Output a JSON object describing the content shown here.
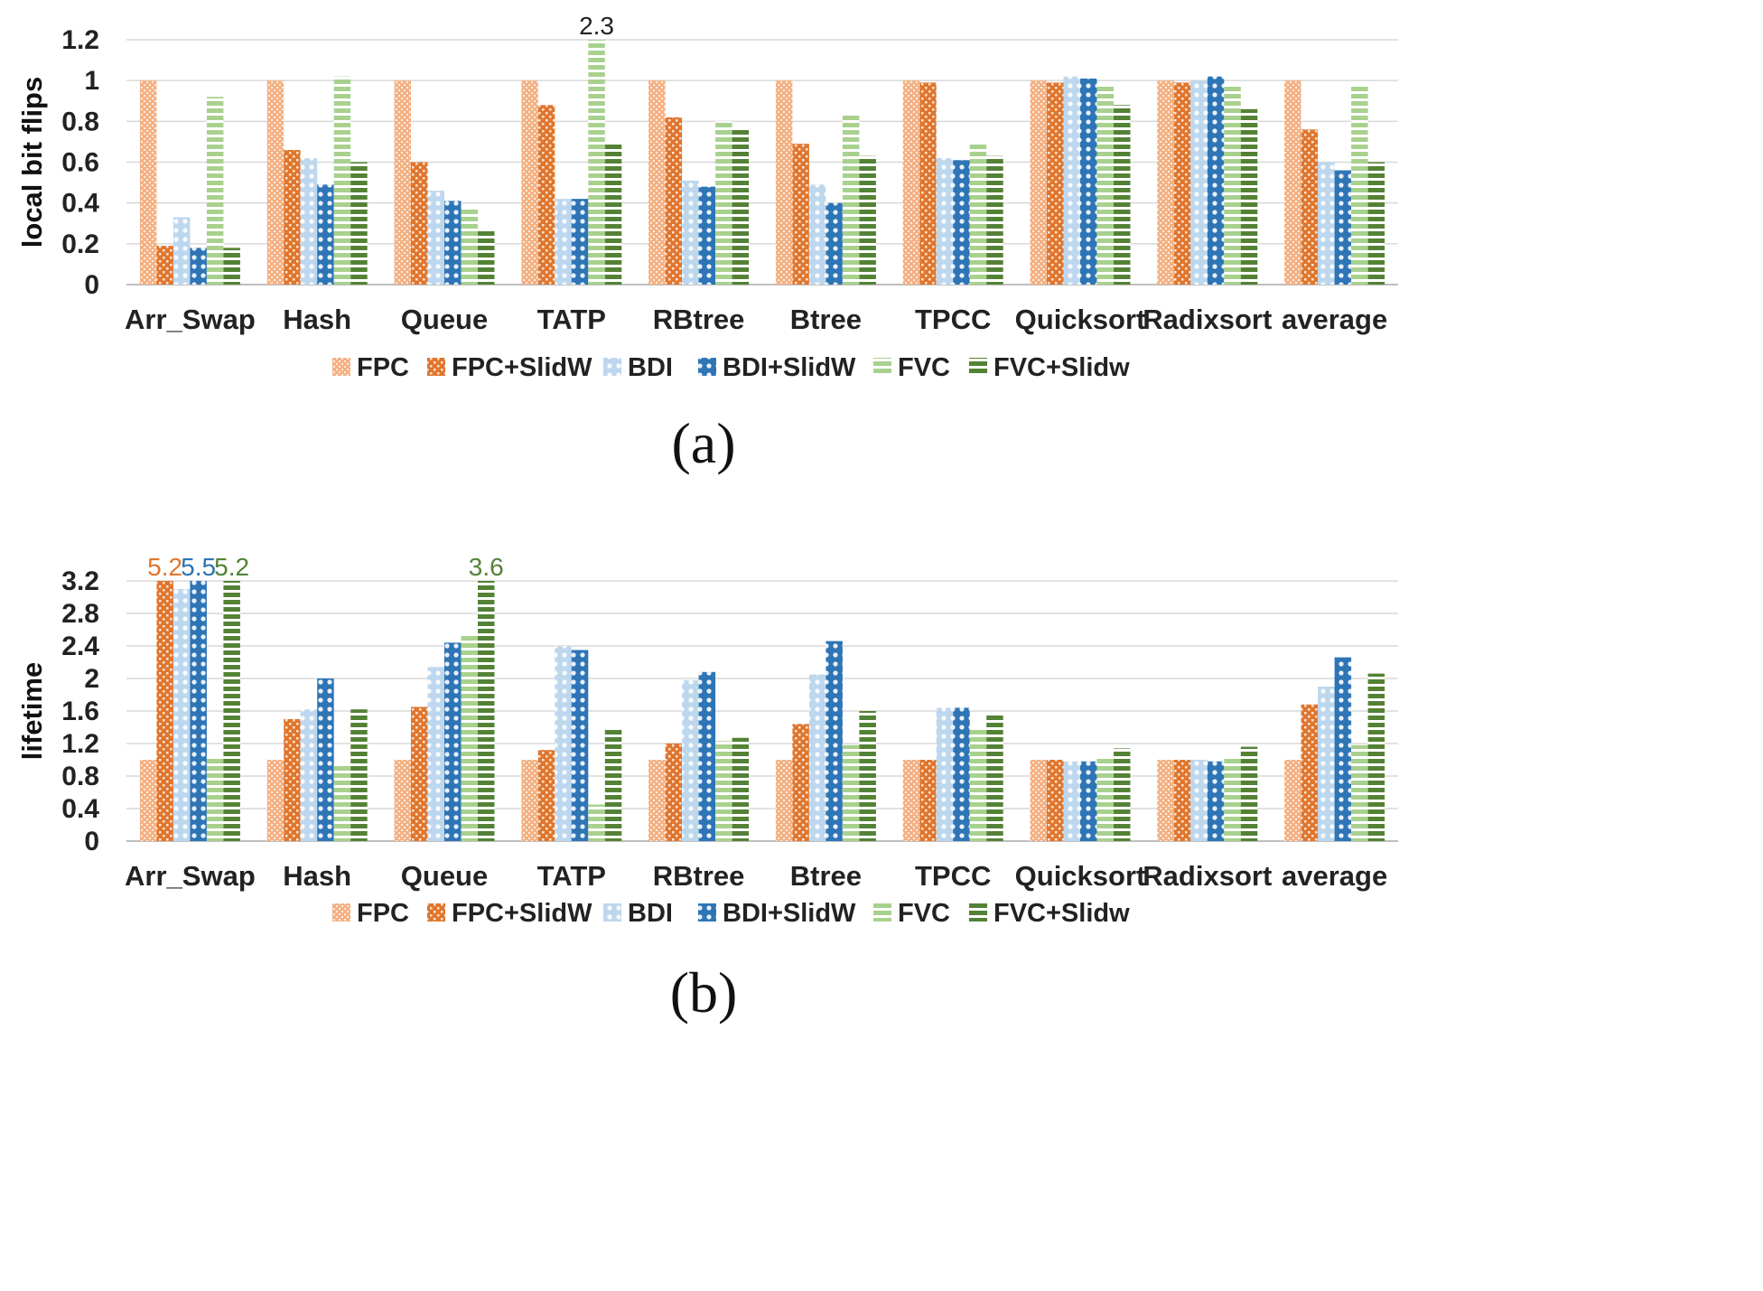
{
  "chart_data": [
    {
      "type": "bar",
      "caption": "(a)",
      "ylabel": "local bit flips",
      "ylim": [
        0,
        1.2
      ],
      "yticks": [
        "0",
        "0.2",
        "0.4",
        "0.6",
        "0.8",
        "1",
        "1.2"
      ],
      "grid": true,
      "legend": "bottom",
      "categories": [
        "Arr_Swap",
        "Hash",
        "Queue",
        "TATP",
        "RBtree",
        "Btree",
        "TPCC",
        "Quicksort",
        "Radixsort",
        "average"
      ],
      "series": [
        {
          "name": "FPC",
          "color": "#f4b183",
          "pattern": "dots",
          "values": [
            1,
            1,
            1,
            1,
            1,
            1,
            1,
            1,
            1,
            1
          ]
        },
        {
          "name": "FPC+SlidW",
          "color": "#e0762e",
          "pattern": "checker",
          "values": [
            0.19,
            0.66,
            0.6,
            0.88,
            0.82,
            0.69,
            0.99,
            0.99,
            0.99,
            0.76
          ]
        },
        {
          "name": "BDI",
          "color": "#bdd7ee",
          "pattern": "rings",
          "values": [
            0.33,
            0.62,
            0.46,
            0.42,
            0.51,
            0.49,
            0.62,
            1.02,
            1,
            0.6
          ]
        },
        {
          "name": "BDI+SlidW",
          "color": "#2e75b6",
          "pattern": "rings",
          "values": [
            0.18,
            0.49,
            0.41,
            0.42,
            0.48,
            0.4,
            0.61,
            1.01,
            1.02,
            0.56
          ]
        },
        {
          "name": "FVC",
          "color": "#a9d18e",
          "pattern": "hstripes",
          "values": [
            0.92,
            1.02,
            0.37,
            1.2,
            0.8,
            0.83,
            0.69,
            0.97,
            0.97,
            0.97
          ]
        },
        {
          "name": "FVC+Slidw",
          "color": "#548235",
          "pattern": "hstripes",
          "values": [
            0.18,
            0.6,
            0.27,
            0.69,
            0.77,
            0.63,
            0.63,
            0.88,
            0.86,
            0.6
          ]
        }
      ],
      "annotations": [
        {
          "category": "TATP",
          "series": "FVC",
          "text": "2.3",
          "color": "#222222"
        }
      ]
    },
    {
      "type": "bar",
      "caption": "(b)",
      "ylabel": "lifetime",
      "ylim": [
        0,
        3.2
      ],
      "yticks": [
        "0",
        "0.4",
        "0.8",
        "1.2",
        "1.6",
        "2",
        "2.4",
        "2.8",
        "3.2"
      ],
      "grid": true,
      "legend": "bottom",
      "categories": [
        "Arr_Swap",
        "Hash",
        "Queue",
        "TATP",
        "RBtree",
        "Btree",
        "TPCC",
        "Quicksort",
        "Radixsort",
        "average"
      ],
      "series": [
        {
          "name": "FPC",
          "color": "#f4b183",
          "pattern": "dots",
          "values": [
            1,
            1,
            1,
            1,
            1,
            1,
            1,
            1,
            1,
            1
          ]
        },
        {
          "name": "FPC+SlidW",
          "color": "#e0762e",
          "pattern": "checker",
          "values": [
            3.2,
            1.5,
            1.65,
            1.12,
            1.2,
            1.44,
            1,
            1,
            1,
            1.68
          ]
        },
        {
          "name": "BDI",
          "color": "#bdd7ee",
          "pattern": "rings",
          "values": [
            3.1,
            1.62,
            2.14,
            2.4,
            1.98,
            2.05,
            1.64,
            0.98,
            1,
            1.9
          ]
        },
        {
          "name": "BDI+SlidW",
          "color": "#2e75b6",
          "pattern": "rings",
          "values": [
            3.2,
            2.0,
            2.44,
            2.35,
            2.08,
            2.46,
            1.64,
            0.98,
            0.98,
            2.26
          ]
        },
        {
          "name": "FVC",
          "color": "#a9d18e",
          "pattern": "hstripes",
          "values": [
            1.04,
            0.95,
            2.55,
            0.45,
            1.23,
            1.18,
            1.38,
            1.02,
            1.02,
            1.18
          ]
        },
        {
          "name": "FVC+Slidw",
          "color": "#548235",
          "pattern": "hstripes",
          "values": [
            3.2,
            1.62,
            3.2,
            1.38,
            1.27,
            1.6,
            1.56,
            1.14,
            1.16,
            2.06
          ]
        }
      ],
      "annotations": [
        {
          "category": "Arr_Swap",
          "series": "FPC+SlidW",
          "text": "5.2",
          "color": "#e0762e"
        },
        {
          "category": "Arr_Swap",
          "series": "BDI+SlidW",
          "text": "5.5",
          "color": "#2e75b6"
        },
        {
          "category": "Arr_Swap",
          "series": "FVC+Slidw",
          "text": "5.2",
          "color": "#548235"
        },
        {
          "category": "Queue",
          "series": "FVC+Slidw",
          "text": "3.6",
          "color": "#548235"
        }
      ]
    }
  ]
}
